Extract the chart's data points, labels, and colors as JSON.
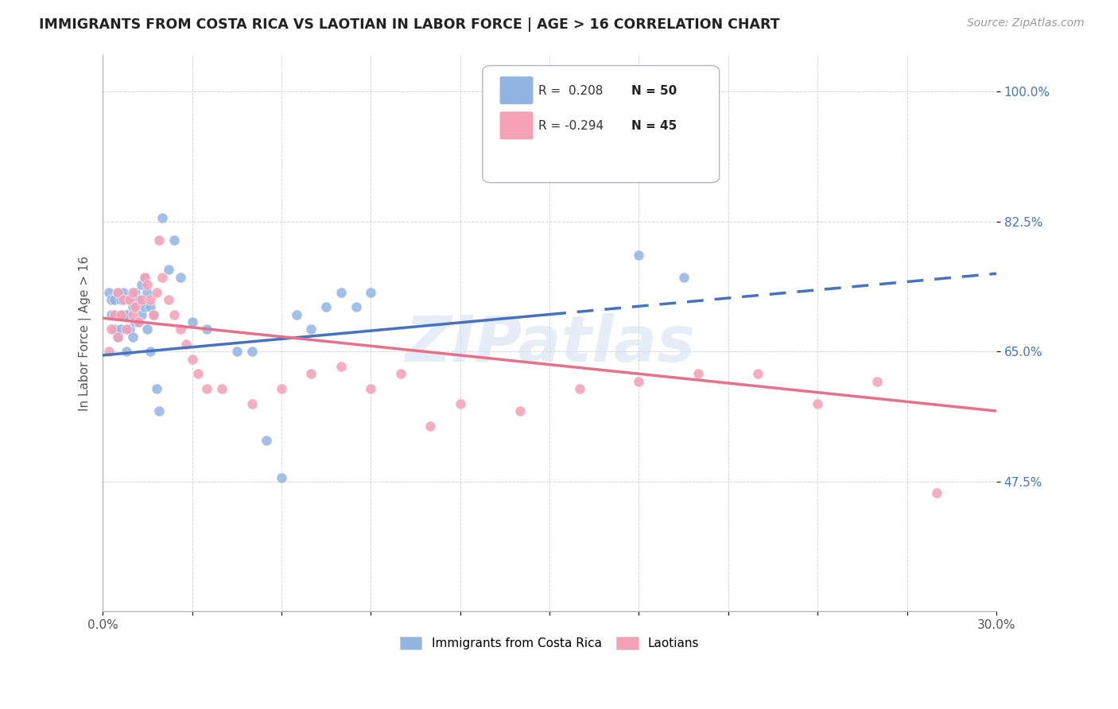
{
  "title": "IMMIGRANTS FROM COSTA RICA VS LAOTIAN IN LABOR FORCE | AGE > 16 CORRELATION CHART",
  "source": "Source: ZipAtlas.com",
  "ylabel": "In Labor Force | Age > 16",
  "xlim": [
    0.0,
    0.3
  ],
  "ylim": [
    0.3,
    1.05
  ],
  "xticks": [
    0.0,
    0.03,
    0.06,
    0.09,
    0.12,
    0.15,
    0.18,
    0.21,
    0.24,
    0.27,
    0.3
  ],
  "xticklabels": [
    "0.0%",
    "",
    "",
    "",
    "",
    "",
    "",
    "",
    "",
    "",
    "30.0%"
  ],
  "yticks": [
    0.475,
    0.65,
    0.825,
    1.0
  ],
  "yticklabels": [
    "47.5%",
    "65.0%",
    "82.5%",
    "100.0%"
  ],
  "blue_color": "#92b4e3",
  "pink_color": "#f4a0b5",
  "blue_line_color": "#4472c4",
  "pink_line_color": "#e8708a",
  "legend_R1": "R =  0.208",
  "legend_N1": "N = 50",
  "legend_R2": "R = -0.294",
  "legend_N2": "N = 45",
  "blue_label": "Immigrants from Costa Rica",
  "pink_label": "Laotians",
  "watermark": "ZIPatlas",
  "blue_scatter_x": [
    0.002,
    0.003,
    0.003,
    0.004,
    0.004,
    0.005,
    0.005,
    0.006,
    0.006,
    0.007,
    0.007,
    0.008,
    0.008,
    0.009,
    0.009,
    0.01,
    0.01,
    0.011,
    0.011,
    0.012,
    0.012,
    0.013,
    0.013,
    0.014,
    0.014,
    0.015,
    0.015,
    0.016,
    0.016,
    0.017,
    0.018,
    0.019,
    0.02,
    0.022,
    0.024,
    0.026,
    0.03,
    0.035,
    0.045,
    0.05,
    0.055,
    0.06,
    0.065,
    0.07,
    0.075,
    0.08,
    0.085,
    0.09,
    0.18,
    0.195
  ],
  "blue_scatter_y": [
    0.73,
    0.72,
    0.7,
    0.72,
    0.68,
    0.67,
    0.73,
    0.72,
    0.68,
    0.73,
    0.7,
    0.7,
    0.65,
    0.72,
    0.68,
    0.71,
    0.67,
    0.73,
    0.69,
    0.72,
    0.69,
    0.74,
    0.7,
    0.75,
    0.71,
    0.68,
    0.73,
    0.71,
    0.65,
    0.7,
    0.6,
    0.57,
    0.83,
    0.76,
    0.8,
    0.75,
    0.69,
    0.68,
    0.65,
    0.65,
    0.53,
    0.48,
    0.7,
    0.68,
    0.71,
    0.73,
    0.71,
    0.73,
    0.78,
    0.75
  ],
  "pink_scatter_x": [
    0.002,
    0.003,
    0.004,
    0.005,
    0.005,
    0.006,
    0.007,
    0.008,
    0.009,
    0.01,
    0.01,
    0.011,
    0.012,
    0.013,
    0.014,
    0.015,
    0.016,
    0.017,
    0.018,
    0.019,
    0.02,
    0.022,
    0.024,
    0.026,
    0.028,
    0.03,
    0.032,
    0.035,
    0.04,
    0.05,
    0.06,
    0.07,
    0.08,
    0.09,
    0.1,
    0.11,
    0.12,
    0.14,
    0.16,
    0.18,
    0.2,
    0.22,
    0.24,
    0.26,
    0.28
  ],
  "pink_scatter_y": [
    0.65,
    0.68,
    0.7,
    0.67,
    0.73,
    0.7,
    0.72,
    0.68,
    0.72,
    0.7,
    0.73,
    0.71,
    0.69,
    0.72,
    0.75,
    0.74,
    0.72,
    0.7,
    0.73,
    0.8,
    0.75,
    0.72,
    0.7,
    0.68,
    0.66,
    0.64,
    0.62,
    0.6,
    0.6,
    0.58,
    0.6,
    0.62,
    0.63,
    0.6,
    0.62,
    0.55,
    0.58,
    0.57,
    0.6,
    0.61,
    0.62,
    0.62,
    0.58,
    0.61,
    0.46
  ],
  "blue_line_y0": 0.645,
  "blue_line_y1": 0.755,
  "pink_line_y0": 0.695,
  "pink_line_y1": 0.57
}
